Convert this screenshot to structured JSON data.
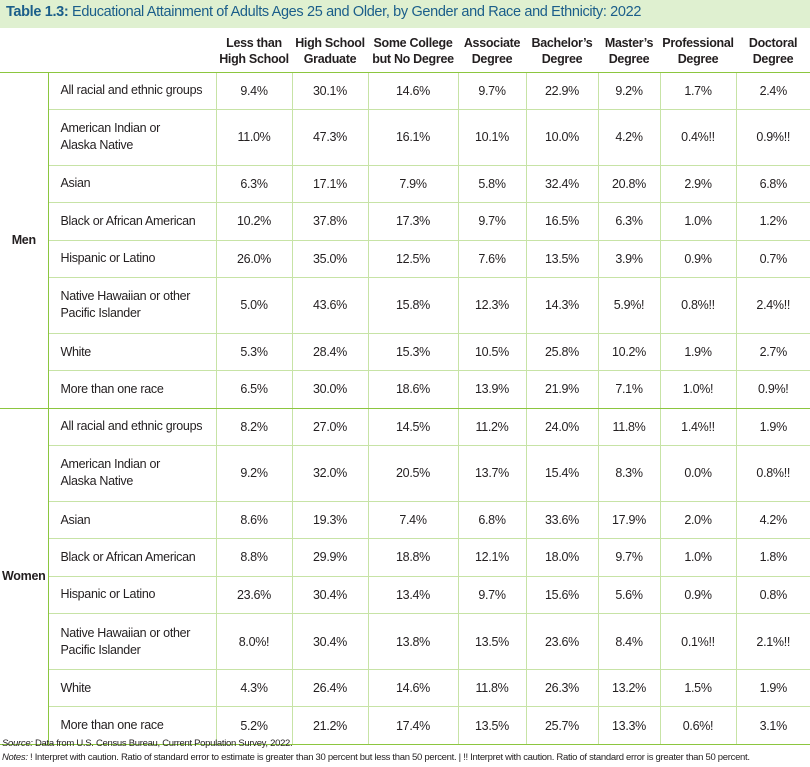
{
  "title": {
    "label": "Table 1.3:",
    "text": "Educational Attainment of Adults Ages 25 and Older, by Gender and Race and Ethnicity: 2022"
  },
  "columns": [
    [
      "Less than",
      "High School"
    ],
    [
      "High School",
      "Graduate"
    ],
    [
      "Some College",
      "but No Degree"
    ],
    [
      "Associate",
      "Degree"
    ],
    [
      "Bachelor’s",
      "Degree"
    ],
    [
      "Master’s",
      "Degree"
    ],
    [
      "Professional",
      "Degree"
    ],
    [
      "Doctoral",
      "Degree"
    ]
  ],
  "groups": [
    {
      "gender": "Men",
      "rows": [
        {
          "race": [
            "All racial and ethnic groups"
          ],
          "values": [
            "9.4%",
            "30.1%",
            "14.6%",
            "9.7%",
            "22.9%",
            "9.2%",
            "1.7%",
            "2.4%"
          ]
        },
        {
          "race": [
            "American Indian or",
            "Alaska Native"
          ],
          "values": [
            "11.0%",
            "47.3%",
            "16.1%",
            "10.1%",
            "10.0%",
            "4.2%",
            "0.4%!!",
            "0.9%!!"
          ]
        },
        {
          "race": [
            "Asian"
          ],
          "values": [
            "6.3%",
            "17.1%",
            "7.9%",
            "5.8%",
            "32.4%",
            "20.8%",
            "2.9%",
            "6.8%"
          ]
        },
        {
          "race": [
            "Black or African American"
          ],
          "values": [
            "10.2%",
            "37.8%",
            "17.3%",
            "9.7%",
            "16.5%",
            "6.3%",
            "1.0%",
            "1.2%"
          ]
        },
        {
          "race": [
            "Hispanic or Latino"
          ],
          "values": [
            "26.0%",
            "35.0%",
            "12.5%",
            "7.6%",
            "13.5%",
            "3.9%",
            "0.9%",
            "0.7%"
          ]
        },
        {
          "race": [
            "Native Hawaiian or other",
            "Pacific Islander"
          ],
          "values": [
            "5.0%",
            "43.6%",
            "15.8%",
            "12.3%",
            "14.3%",
            "5.9%!",
            "0.8%!!",
            "2.4%!!"
          ]
        },
        {
          "race": [
            "White"
          ],
          "values": [
            "5.3%",
            "28.4%",
            "15.3%",
            "10.5%",
            "25.8%",
            "10.2%",
            "1.9%",
            "2.7%"
          ]
        },
        {
          "race": [
            "More than one race"
          ],
          "values": [
            "6.5%",
            "30.0%",
            "18.6%",
            "13.9%",
            "21.9%",
            "7.1%",
            "1.0%!",
            "0.9%!"
          ]
        }
      ]
    },
    {
      "gender": "Women",
      "rows": [
        {
          "race": [
            "All racial and ethnic groups"
          ],
          "values": [
            "8.2%",
            "27.0%",
            "14.5%",
            "11.2%",
            "24.0%",
            "11.8%",
            "1.4%!!",
            "1.9%"
          ]
        },
        {
          "race": [
            "American Indian or",
            "Alaska Native"
          ],
          "values": [
            "9.2%",
            "32.0%",
            "20.5%",
            "13.7%",
            "15.4%",
            "8.3%",
            "0.0%",
            "0.8%!!"
          ]
        },
        {
          "race": [
            "Asian"
          ],
          "values": [
            "8.6%",
            "19.3%",
            "7.4%",
            "6.8%",
            "33.6%",
            "17.9%",
            "2.0%",
            "4.2%"
          ]
        },
        {
          "race": [
            "Black or African American"
          ],
          "values": [
            "8.8%",
            "29.9%",
            "18.8%",
            "12.1%",
            "18.0%",
            "9.7%",
            "1.0%",
            "1.8%"
          ]
        },
        {
          "race": [
            "Hispanic or Latino"
          ],
          "values": [
            "23.6%",
            "30.4%",
            "13.4%",
            "9.7%",
            "15.6%",
            "5.6%",
            "0.9%",
            "0.8%"
          ]
        },
        {
          "race": [
            "Native Hawaiian or other",
            "Pacific Islander"
          ],
          "values": [
            "8.0%!",
            "30.4%",
            "13.8%",
            "13.5%",
            "23.6%",
            "8.4%",
            "0.1%!!",
            "2.1%!!"
          ]
        },
        {
          "race": [
            "White"
          ],
          "values": [
            "4.3%",
            "26.4%",
            "14.6%",
            "11.8%",
            "26.3%",
            "13.2%",
            "1.5%",
            "1.9%"
          ]
        },
        {
          "race": [
            "More than one race"
          ],
          "values": [
            "5.2%",
            "21.2%",
            "17.4%",
            "13.5%",
            "25.7%",
            "13.3%",
            "0.6%!",
            "3.1%"
          ]
        }
      ]
    }
  ],
  "source": {
    "label": "Source:",
    "text": "Data from U.S. Census Bureau, Current Population Survey, 2022."
  },
  "notes": {
    "label": "Notes:",
    "text": "! Interpret with caution. Ratio of standard error to estimate is greater than 30 percent but less than 50 percent.  |  !! Interpret with caution. Ratio of standard error is greater than 50 percent."
  }
}
